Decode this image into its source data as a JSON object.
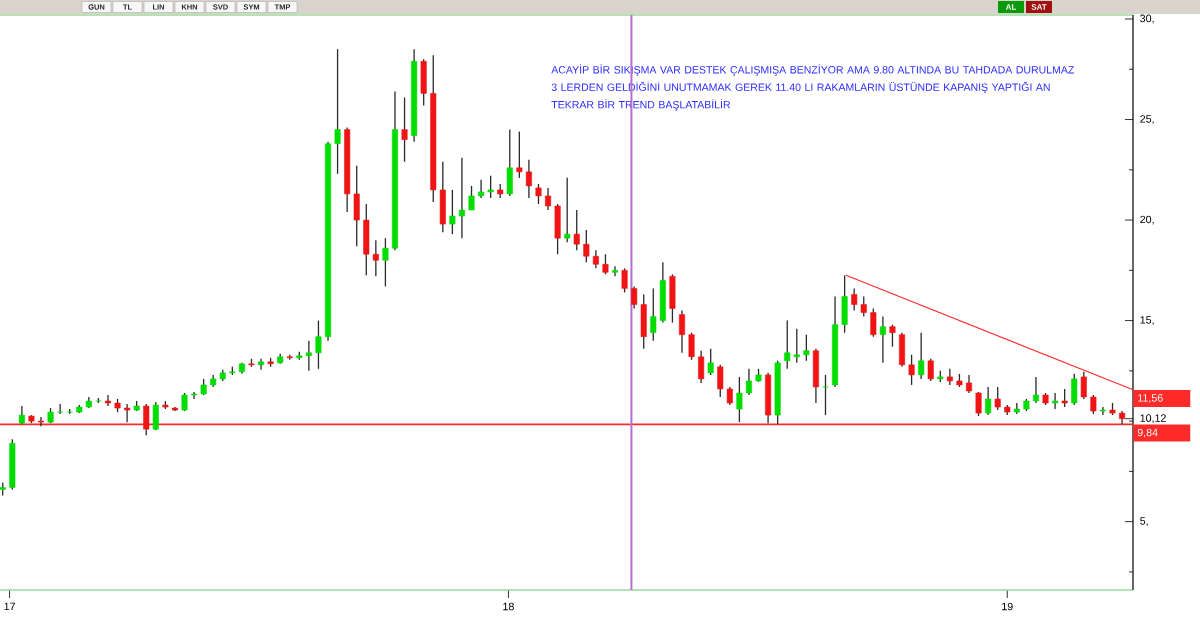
{
  "chart_data": {
    "type": "candlestick",
    "x": [
      "2016-12-28",
      "2017-01-04",
      "2017-01-11",
      "2017-01-18",
      "2017-01-25",
      "2017-02-01",
      "2017-02-08",
      "2017-02-15",
      "2017-02-22",
      "2017-03-01",
      "2017-03-08",
      "2017-03-15",
      "2017-03-22",
      "2017-03-29",
      "2017-04-05",
      "2017-04-12",
      "2017-04-19",
      "2017-04-26",
      "2017-05-03",
      "2017-05-10",
      "2017-05-17",
      "2017-05-24",
      "2017-05-31",
      "2017-06-07",
      "2017-06-14",
      "2017-06-21",
      "2017-06-28",
      "2017-07-05",
      "2017-07-12",
      "2017-07-19",
      "2017-07-26",
      "2017-08-02",
      "2017-08-09",
      "2017-08-16",
      "2017-08-23",
      "2017-08-30",
      "2017-09-06",
      "2017-09-13",
      "2017-09-20",
      "2017-09-27",
      "2017-10-04",
      "2017-10-11",
      "2017-10-18",
      "2017-10-25",
      "2017-11-01",
      "2017-11-08",
      "2017-11-15",
      "2017-11-22",
      "2017-11-29",
      "2017-12-06",
      "2017-12-13",
      "2017-12-20",
      "2017-12-27",
      "2018-01-03",
      "2018-01-10",
      "2018-01-17",
      "2018-01-24",
      "2018-01-31",
      "2018-02-07",
      "2018-02-14",
      "2018-02-21",
      "2018-02-28",
      "2018-03-07",
      "2018-03-14",
      "2018-03-21",
      "2018-03-28",
      "2018-04-04",
      "2018-04-11",
      "2018-04-18",
      "2018-04-25",
      "2018-05-02",
      "2018-05-09",
      "2018-05-16",
      "2018-05-23",
      "2018-05-30",
      "2018-06-06",
      "2018-06-13",
      "2018-06-20",
      "2018-06-27",
      "2018-07-04",
      "2018-07-11",
      "2018-07-18",
      "2018-07-25",
      "2018-08-01",
      "2018-08-08",
      "2018-08-15",
      "2018-08-22",
      "2018-08-29",
      "2018-09-05",
      "2018-09-12",
      "2018-09-19",
      "2018-09-26",
      "2018-10-03",
      "2018-10-10",
      "2018-10-17",
      "2018-10-24",
      "2018-10-31",
      "2018-11-07",
      "2018-11-14",
      "2018-11-21",
      "2018-11-28",
      "2018-12-05",
      "2018-12-12",
      "2018-12-19",
      "2018-12-26",
      "2019-01-02",
      "2019-01-09",
      "2019-01-16",
      "2019-01-23",
      "2019-01-30",
      "2019-02-06",
      "2019-02-13",
      "2019-02-20",
      "2019-02-27",
      "2019-03-06",
      "2019-03-13",
      "2019-03-20",
      "2019-03-27"
    ],
    "ohlc": [
      [
        6.6,
        6.95,
        6.3,
        6.7
      ],
      [
        6.7,
        9.1,
        6.6,
        8.9
      ],
      [
        9.9,
        10.75,
        9.85,
        10.3
      ],
      [
        10.25,
        10.3,
        9.9,
        10.0
      ],
      [
        10.0,
        10.2,
        9.75,
        9.95
      ],
      [
        9.95,
        10.65,
        9.9,
        10.45
      ],
      [
        10.45,
        10.85,
        10.35,
        10.45
      ],
      [
        10.45,
        10.6,
        10.35,
        10.45
      ],
      [
        10.45,
        10.8,
        10.4,
        10.7
      ],
      [
        10.7,
        11.2,
        10.65,
        11.0
      ],
      [
        11.0,
        11.15,
        10.9,
        11.0
      ],
      [
        11.0,
        11.3,
        10.75,
        10.9
      ],
      [
        10.9,
        11.1,
        10.45,
        10.65
      ],
      [
        10.65,
        10.85,
        9.95,
        10.55
      ],
      [
        10.55,
        11.0,
        10.5,
        10.75
      ],
      [
        10.75,
        10.85,
        9.3,
        9.6
      ],
      [
        9.6,
        10.95,
        9.55,
        10.8
      ],
      [
        10.8,
        11.0,
        10.6,
        10.7
      ],
      [
        10.65,
        10.7,
        10.5,
        10.55
      ],
      [
        10.55,
        11.4,
        10.5,
        11.3
      ],
      [
        11.3,
        11.45,
        11.1,
        11.35
      ],
      [
        11.35,
        12.1,
        11.3,
        11.8
      ],
      [
        11.8,
        12.3,
        11.7,
        12.1
      ],
      [
        12.1,
        12.55,
        12.0,
        12.4
      ],
      [
        12.4,
        12.7,
        12.3,
        12.45
      ],
      [
        12.45,
        12.9,
        12.35,
        12.85
      ],
      [
        12.85,
        13.1,
        12.7,
        12.8
      ],
      [
        12.8,
        13.1,
        12.55,
        12.95
      ],
      [
        12.95,
        13.15,
        12.7,
        12.85
      ],
      [
        12.9,
        13.35,
        12.85,
        13.2
      ],
      [
        13.2,
        13.3,
        13.05,
        13.15
      ],
      [
        13.15,
        13.45,
        13.05,
        13.25
      ],
      [
        13.25,
        14.0,
        12.5,
        13.4
      ],
      [
        13.4,
        15.0,
        12.6,
        14.2
      ],
      [
        14.2,
        23.9,
        14.0,
        23.8
      ],
      [
        23.8,
        28.5,
        22.3,
        24.5
      ],
      [
        24.5,
        24.6,
        20.4,
        21.3
      ],
      [
        21.3,
        22.7,
        18.7,
        20.0
      ],
      [
        20.0,
        20.8,
        17.25,
        18.3
      ],
      [
        18.3,
        19.0,
        17.2,
        18.0
      ],
      [
        18.0,
        19.1,
        16.7,
        18.6
      ],
      [
        18.6,
        26.4,
        18.5,
        24.5
      ],
      [
        24.5,
        26.1,
        22.9,
        24.0
      ],
      [
        24.2,
        28.5,
        23.9,
        27.9
      ],
      [
        27.9,
        28.0,
        25.7,
        26.3
      ],
      [
        26.3,
        28.2,
        20.9,
        21.5
      ],
      [
        21.5,
        22.9,
        19.4,
        19.8
      ],
      [
        19.8,
        21.5,
        19.3,
        20.2
      ],
      [
        20.2,
        23.1,
        19.1,
        20.5
      ],
      [
        20.5,
        21.7,
        20.5,
        21.2
      ],
      [
        21.2,
        22.0,
        21.1,
        21.4
      ],
      [
        21.4,
        22.2,
        21.1,
        21.5
      ],
      [
        21.5,
        21.8,
        21.1,
        21.3
      ],
      [
        21.3,
        24.5,
        21.2,
        22.6
      ],
      [
        22.6,
        24.4,
        22.1,
        22.4
      ],
      [
        22.4,
        23.0,
        21.1,
        21.7
      ],
      [
        21.6,
        21.8,
        20.8,
        21.2
      ],
      [
        21.2,
        21.6,
        20.5,
        20.7
      ],
      [
        20.7,
        20.8,
        18.3,
        19.1
      ],
      [
        19.1,
        22.1,
        18.9,
        19.3
      ],
      [
        19.3,
        20.5,
        18.5,
        18.8
      ],
      [
        18.8,
        19.5,
        17.9,
        18.2
      ],
      [
        18.2,
        18.5,
        17.6,
        17.8
      ],
      [
        17.8,
        18.3,
        17.3,
        17.4
      ],
      [
        17.4,
        17.7,
        17.2,
        17.5
      ],
      [
        17.5,
        17.6,
        16.4,
        16.6
      ],
      [
        16.6,
        16.7,
        15.6,
        15.8
      ],
      [
        15.8,
        16.3,
        13.6,
        14.2
      ],
      [
        14.4,
        16.6,
        14.0,
        15.2
      ],
      [
        15.0,
        17.9,
        14.9,
        17.0
      ],
      [
        17.2,
        17.3,
        14.9,
        15.6
      ],
      [
        15.3,
        15.5,
        13.4,
        14.3
      ],
      [
        14.3,
        14.4,
        13.05,
        13.2
      ],
      [
        13.2,
        13.5,
        11.9,
        12.1
      ],
      [
        12.4,
        13.6,
        12.3,
        12.9
      ],
      [
        12.7,
        12.8,
        11.2,
        11.6
      ],
      [
        11.6,
        11.7,
        10.8,
        10.9
      ],
      [
        10.6,
        12.2,
        9.95,
        11.4
      ],
      [
        11.4,
        12.6,
        11.3,
        12.0
      ],
      [
        12.0,
        12.6,
        11.95,
        12.3
      ],
      [
        12.3,
        12.4,
        9.9,
        10.3
      ],
      [
        10.3,
        13.0,
        9.85,
        12.9
      ],
      [
        13.0,
        15.0,
        12.6,
        13.4
      ],
      [
        13.2,
        14.6,
        12.9,
        13.3
      ],
      [
        13.3,
        14.3,
        13.0,
        13.5
      ],
      [
        13.5,
        13.6,
        10.9,
        11.7
      ],
      [
        11.7,
        12.3,
        10.3,
        11.7
      ],
      [
        11.8,
        16.2,
        11.7,
        14.8
      ],
      [
        14.8,
        17.25,
        14.4,
        16.2
      ],
      [
        16.3,
        16.6,
        15.5,
        15.8
      ],
      [
        15.8,
        16.2,
        15.2,
        15.4
      ],
      [
        15.4,
        15.6,
        14.2,
        14.3
      ],
      [
        14.3,
        15.2,
        12.9,
        14.7
      ],
      [
        14.7,
        14.8,
        13.7,
        14.4
      ],
      [
        14.3,
        14.4,
        12.7,
        12.8
      ],
      [
        12.8,
        13.3,
        11.8,
        12.3
      ],
      [
        12.3,
        14.4,
        12.1,
        13.0
      ],
      [
        13.0,
        13.1,
        12.0,
        12.1
      ],
      [
        12.1,
        12.5,
        11.95,
        12.2
      ],
      [
        12.2,
        12.6,
        11.8,
        12.0
      ],
      [
        12.0,
        12.35,
        11.7,
        11.8
      ],
      [
        11.9,
        12.3,
        11.4,
        11.5
      ],
      [
        11.4,
        11.45,
        10.25,
        10.4
      ],
      [
        10.4,
        11.7,
        10.3,
        11.1
      ],
      [
        11.1,
        11.7,
        10.55,
        10.7
      ],
      [
        10.7,
        10.8,
        10.3,
        10.45
      ],
      [
        10.45,
        10.9,
        10.35,
        10.6
      ],
      [
        10.6,
        11.1,
        10.5,
        11.0
      ],
      [
        11.0,
        12.2,
        10.9,
        11.3
      ],
      [
        11.3,
        11.4,
        10.8,
        10.9
      ],
      [
        10.9,
        11.4,
        10.6,
        11.0
      ],
      [
        11.0,
        11.6,
        10.7,
        10.9
      ],
      [
        10.9,
        12.35,
        10.8,
        12.1
      ],
      [
        12.2,
        12.45,
        11.1,
        11.2
      ],
      [
        11.2,
        11.3,
        10.35,
        10.5
      ],
      [
        10.5,
        10.7,
        10.3,
        10.55
      ],
      [
        10.55,
        10.9,
        10.3,
        10.4
      ],
      [
        10.4,
        10.5,
        9.85,
        10.12
      ]
    ],
    "series": [
      {
        "type": "line",
        "x": [
          "2018-09-06",
          "2019-04-04"
        ],
        "values": [
          17.25,
          11.56
        ],
        "color": "#ff2a2a",
        "value_labels": [
          null,
          "11,56"
        ]
      }
    ],
    "xlim": [
      "2016-12-26",
      "2019-04-04"
    ],
    "xticks": [
      {
        "value": "2017-01-02",
        "label": "17"
      },
      {
        "value": "2018-01-02",
        "label": "18"
      },
      {
        "value": "2019-01-02",
        "label": "19"
      }
    ],
    "ylim": [
      1.6,
      30.2
    ],
    "yticks": [
      {
        "value": 2.5,
        "label": null
      },
      {
        "value": 5,
        "label": "5,"
      },
      {
        "value": 7.5,
        "label": null
      },
      {
        "value": 10,
        "label": null
      },
      {
        "value": 10.12,
        "label": "10,12"
      },
      {
        "value": 12.5,
        "label": null
      },
      {
        "value": 15,
        "label": "15,"
      },
      {
        "value": 17.5,
        "label": null
      },
      {
        "value": 20,
        "label": "20,"
      },
      {
        "value": 22.5,
        "label": null
      },
      {
        "value": 25,
        "label": "25,"
      },
      {
        "value": 27.5,
        "label": null
      },
      {
        "value": 30,
        "label": "30,"
      }
    ],
    "ref_lines": [
      {
        "axis": "y",
        "value": 9.84,
        "label": "9,84",
        "color": "#ff2a2a"
      },
      {
        "axis": "x",
        "value": "2018-04-02",
        "color": "#b26fcf"
      }
    ],
    "annotations": [
      "ACAYİP BİR SIKIŞMA VAR DESTEK ÇALIŞMIŞA BENZİYOR AMA 9.80 ALTINDA BU TAHDADA DURULMAZ 3 LERDEN GELDİĞİNİ UNUTMAMAK GEREK 11.40 LI RAKAMLARIN ÜSTÜNDE KAPANIŞ YAPTIĞI AN TEKRAR BİR TREND BAŞLATABİLİR",
      "GUN",
      "TL",
      "LIN",
      "KHN",
      "SVD",
      "SYM",
      "TMP",
      "AL",
      "SAT"
    ]
  }
}
